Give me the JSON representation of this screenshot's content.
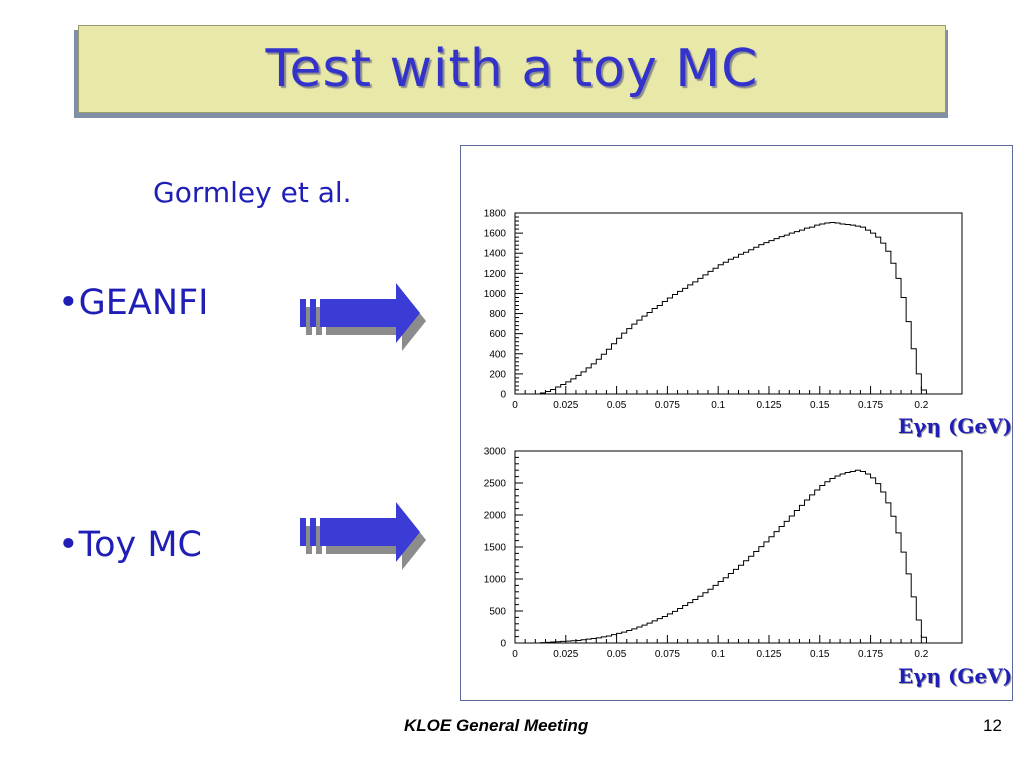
{
  "slide": {
    "title": "Test with a toy MC",
    "subtitle": "Gormley et al.",
    "bullets": [
      "•GEANFI",
      "•Toy MC"
    ],
    "footer": "KLOE General Meeting",
    "page_number": "12",
    "accent_color": "#3333cc",
    "title_bg_color": "#e8e8a8"
  },
  "chart_data": [
    {
      "type": "histogram",
      "title": "",
      "xlabel": "Eγη (GeV)",
      "ylabel": "",
      "xlim": [
        0,
        0.22
      ],
      "ylim": [
        0,
        1800
      ],
      "x_ticks": [
        "0",
        "0.025",
        "0.05",
        "0.075",
        "0.1",
        "0.125",
        "0.15",
        "0.175",
        "0.2"
      ],
      "y_ticks": [
        "0",
        "200",
        "400",
        "600",
        "800",
        "1000",
        "1200",
        "1400",
        "1600",
        "1800"
      ],
      "series": [
        {
          "values": [
            [
              0.01,
              0
            ],
            [
              0.0125,
              10
            ],
            [
              0.015,
              25
            ],
            [
              0.0175,
              45
            ],
            [
              0.02,
              70
            ],
            [
              0.0225,
              95
            ],
            [
              0.025,
              120
            ],
            [
              0.0275,
              150
            ],
            [
              0.03,
              185
            ],
            [
              0.0325,
              220
            ],
            [
              0.035,
              260
            ],
            [
              0.0375,
              300
            ],
            [
              0.04,
              345
            ],
            [
              0.0425,
              395
            ],
            [
              0.045,
              445
            ],
            [
              0.0475,
              500
            ],
            [
              0.05,
              555
            ],
            [
              0.0525,
              605
            ],
            [
              0.055,
              650
            ],
            [
              0.0575,
              695
            ],
            [
              0.06,
              735
            ],
            [
              0.0625,
              775
            ],
            [
              0.065,
              810
            ],
            [
              0.0675,
              850
            ],
            [
              0.07,
              880
            ],
            [
              0.0725,
              920
            ],
            [
              0.075,
              955
            ],
            [
              0.0775,
              990
            ],
            [
              0.08,
              1020
            ],
            [
              0.0825,
              1050
            ],
            [
              0.085,
              1085
            ],
            [
              0.0875,
              1115
            ],
            [
              0.09,
              1150
            ],
            [
              0.0925,
              1185
            ],
            [
              0.095,
              1220
            ],
            [
              0.0975,
              1250
            ],
            [
              0.1,
              1285
            ],
            [
              0.1025,
              1310
            ],
            [
              0.105,
              1340
            ],
            [
              0.1075,
              1360
            ],
            [
              0.11,
              1390
            ],
            [
              0.1125,
              1410
            ],
            [
              0.115,
              1435
            ],
            [
              0.1175,
              1460
            ],
            [
              0.12,
              1485
            ],
            [
              0.1225,
              1505
            ],
            [
              0.125,
              1525
            ],
            [
              0.1275,
              1545
            ],
            [
              0.13,
              1565
            ],
            [
              0.1325,
              1580
            ],
            [
              0.135,
              1600
            ],
            [
              0.1375,
              1615
            ],
            [
              0.14,
              1630
            ],
            [
              0.1425,
              1650
            ],
            [
              0.145,
              1660
            ],
            [
              0.1475,
              1680
            ],
            [
              0.15,
              1690
            ],
            [
              0.1525,
              1700
            ],
            [
              0.155,
              1705
            ],
            [
              0.1575,
              1700
            ],
            [
              0.16,
              1690
            ],
            [
              0.1625,
              1685
            ],
            [
              0.165,
              1680
            ],
            [
              0.1675,
              1670
            ],
            [
              0.17,
              1660
            ],
            [
              0.1725,
              1630
            ],
            [
              0.175,
              1600
            ],
            [
              0.1775,
              1560
            ],
            [
              0.18,
              1500
            ],
            [
              0.1825,
              1420
            ],
            [
              0.185,
              1300
            ],
            [
              0.1875,
              1150
            ],
            [
              0.19,
              960
            ],
            [
              0.1925,
              720
            ],
            [
              0.195,
              450
            ],
            [
              0.1975,
              200
            ],
            [
              0.2,
              40
            ],
            [
              0.2025,
              0
            ]
          ]
        }
      ]
    },
    {
      "type": "histogram",
      "title": "",
      "xlabel": "Eγη (GeV)",
      "ylabel": "",
      "xlim": [
        0,
        0.22
      ],
      "ylim": [
        0,
        3000
      ],
      "x_ticks": [
        "0",
        "0.025",
        "0.05",
        "0.075",
        "0.1",
        "0.125",
        "0.15",
        "0.175",
        "0.2"
      ],
      "y_ticks": [
        "0",
        "500",
        "1000",
        "1500",
        "2000",
        "2500",
        "3000"
      ],
      "series": [
        {
          "values": [
            [
              0.01,
              0
            ],
            [
              0.0125,
              5
            ],
            [
              0.015,
              10
            ],
            [
              0.0175,
              15
            ],
            [
              0.02,
              20
            ],
            [
              0.0225,
              25
            ],
            [
              0.025,
              30
            ],
            [
              0.0275,
              35
            ],
            [
              0.03,
              40
            ],
            [
              0.0325,
              50
            ],
            [
              0.035,
              60
            ],
            [
              0.0375,
              70
            ],
            [
              0.04,
              80
            ],
            [
              0.0425,
              95
            ],
            [
              0.045,
              110
            ],
            [
              0.0475,
              130
            ],
            [
              0.05,
              150
            ],
            [
              0.0525,
              170
            ],
            [
              0.055,
              195
            ],
            [
              0.0575,
              220
            ],
            [
              0.06,
              250
            ],
            [
              0.0625,
              280
            ],
            [
              0.065,
              310
            ],
            [
              0.0675,
              345
            ],
            [
              0.07,
              380
            ],
            [
              0.0725,
              415
            ],
            [
              0.075,
              455
            ],
            [
              0.0775,
              495
            ],
            [
              0.08,
              540
            ],
            [
              0.0825,
              585
            ],
            [
              0.085,
              630
            ],
            [
              0.0875,
              680
            ],
            [
              0.09,
              730
            ],
            [
              0.0925,
              785
            ],
            [
              0.095,
              840
            ],
            [
              0.0975,
              900
            ],
            [
              0.1,
              960
            ],
            [
              0.1025,
              1020
            ],
            [
              0.105,
              1085
            ],
            [
              0.1075,
              1150
            ],
            [
              0.11,
              1215
            ],
            [
              0.1125,
              1285
            ],
            [
              0.115,
              1355
            ],
            [
              0.1175,
              1430
            ],
            [
              0.12,
              1505
            ],
            [
              0.1225,
              1580
            ],
            [
              0.125,
              1660
            ],
            [
              0.1275,
              1740
            ],
            [
              0.13,
              1820
            ],
            [
              0.1325,
              1900
            ],
            [
              0.135,
              1985
            ],
            [
              0.1375,
              2070
            ],
            [
              0.14,
              2150
            ],
            [
              0.1425,
              2235
            ],
            [
              0.145,
              2315
            ],
            [
              0.1475,
              2390
            ],
            [
              0.15,
              2460
            ],
            [
              0.1525,
              2520
            ],
            [
              0.155,
              2570
            ],
            [
              0.1575,
              2610
            ],
            [
              0.16,
              2640
            ],
            [
              0.1625,
              2665
            ],
            [
              0.165,
              2680
            ],
            [
              0.1675,
              2700
            ],
            [
              0.17,
              2680
            ],
            [
              0.1725,
              2640
            ],
            [
              0.175,
              2580
            ],
            [
              0.1775,
              2490
            ],
            [
              0.18,
              2360
            ],
            [
              0.1825,
              2190
            ],
            [
              0.185,
              1980
            ],
            [
              0.1875,
              1720
            ],
            [
              0.19,
              1420
            ],
            [
              0.1925,
              1080
            ],
            [
              0.195,
              720
            ],
            [
              0.1975,
              360
            ],
            [
              0.2,
              90
            ],
            [
              0.2025,
              0
            ]
          ]
        }
      ]
    }
  ]
}
